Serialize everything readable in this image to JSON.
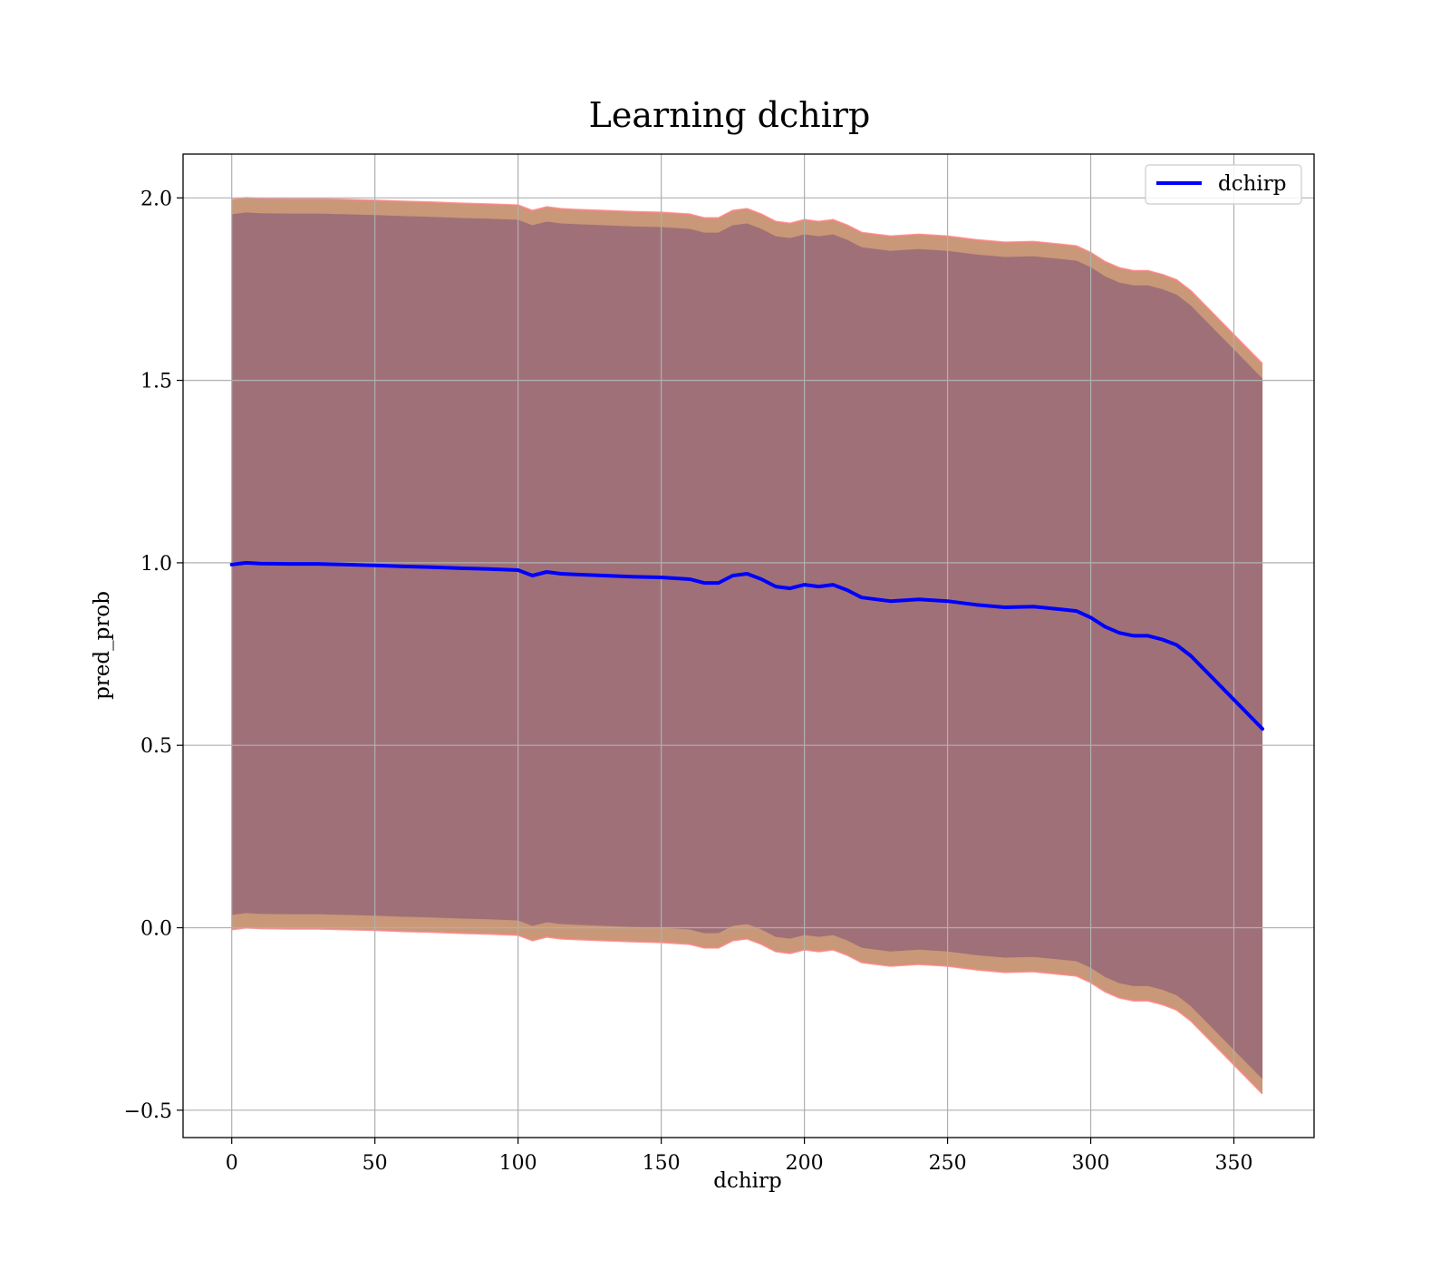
{
  "chart_data": {
    "type": "line",
    "title": "Learning dchirp",
    "xlabel": "dchirp",
    "ylabel": "pred_prob",
    "xlim": [
      -17,
      378
    ],
    "ylim": [
      -0.575,
      2.12
    ],
    "xticks": [
      0,
      50,
      100,
      150,
      200,
      250,
      300,
      350
    ],
    "yticks": [
      -0.5,
      0.0,
      0.5,
      1.0,
      1.5,
      2.0
    ],
    "ytick_labels": [
      "−0.5",
      "0.0",
      "0.5",
      "1.0",
      "1.5",
      "2.0"
    ],
    "grid": true,
    "legend": {
      "position": "upper right",
      "entries": [
        {
          "label": "dchirp",
          "color": "#0000ff"
        }
      ]
    },
    "colors": {
      "line": "#0000ff",
      "inner_band": "#a07078",
      "outer_band": "#c89878",
      "band_edge": "#ff8080",
      "grid": "#b0b0b0"
    },
    "band_offsets": {
      "inner": 0.96,
      "outer": 1.0
    },
    "series": [
      {
        "name": "dchirp",
        "x": [
          0,
          5,
          10,
          20,
          30,
          40,
          50,
          60,
          70,
          80,
          90,
          100,
          105,
          110,
          115,
          120,
          130,
          140,
          150,
          160,
          165,
          170,
          175,
          180,
          185,
          190,
          195,
          200,
          205,
          210,
          215,
          220,
          230,
          240,
          250,
          260,
          270,
          280,
          290,
          295,
          300,
          305,
          310,
          315,
          320,
          325,
          330,
          335,
          340,
          350,
          360
        ],
        "y": [
          0.995,
          1.0,
          0.998,
          0.997,
          0.997,
          0.995,
          0.993,
          0.99,
          0.988,
          0.985,
          0.983,
          0.98,
          0.965,
          0.975,
          0.97,
          0.968,
          0.965,
          0.962,
          0.96,
          0.955,
          0.945,
          0.945,
          0.965,
          0.97,
          0.955,
          0.935,
          0.93,
          0.94,
          0.935,
          0.94,
          0.925,
          0.905,
          0.895,
          0.9,
          0.895,
          0.885,
          0.878,
          0.88,
          0.872,
          0.868,
          0.85,
          0.825,
          0.808,
          0.8,
          0.8,
          0.79,
          0.775,
          0.745,
          0.705,
          0.625,
          0.545
        ]
      }
    ]
  }
}
